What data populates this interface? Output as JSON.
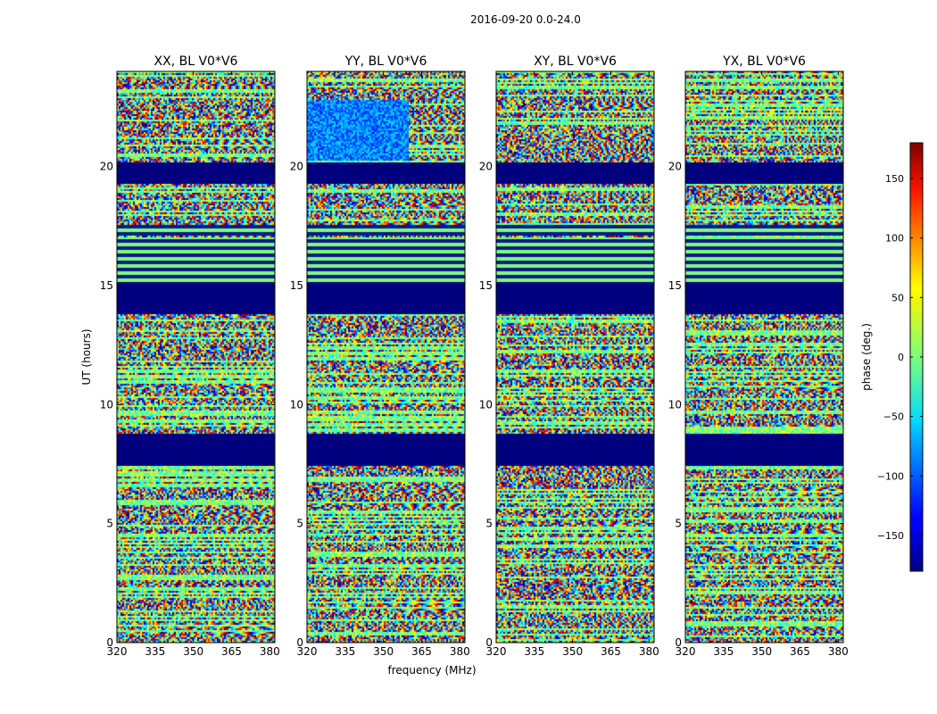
{
  "figure": {
    "suptitle": "2016-09-20 0.0-24.0"
  },
  "chart_data": {
    "type": "heatmap",
    "xlabel": "frequency (MHz)",
    "ylabel": "UT (hours)",
    "xlim": [
      320,
      382
    ],
    "ylim": [
      0,
      24
    ],
    "xticks": [
      320,
      335,
      350,
      365,
      380
    ],
    "yticks": [
      0,
      5,
      10,
      15,
      20
    ],
    "panels": [
      {
        "title": "XX, BL V0*V6",
        "variant": 0
      },
      {
        "title": "YY, BL V0*V6",
        "variant": 1
      },
      {
        "title": "XY, BL V0*V6",
        "variant": 2
      },
      {
        "title": "YX, BL V0*V6",
        "variant": 3
      }
    ],
    "flagged_ut_ranges": [
      [
        7.5,
        8.8
      ],
      [
        13.8,
        15.2
      ],
      [
        19.3,
        20.2
      ]
    ],
    "calibrator_ut_ranges": [
      [
        15.2,
        17.1
      ],
      [
        17.15,
        17.55
      ]
    ],
    "colorbar": {
      "label": "phase (deg.)",
      "range": [
        -180,
        180
      ],
      "ticks": [
        150,
        100,
        50,
        0,
        -50,
        -100,
        -150
      ],
      "tick_labels": [
        "150",
        "100",
        "50",
        "0",
        "−50",
        "−100",
        "−150"
      ]
    },
    "colors": {
      "flagged": "#00007f",
      "calibrator": "#7dff7a",
      "row_line": "#000000"
    }
  }
}
